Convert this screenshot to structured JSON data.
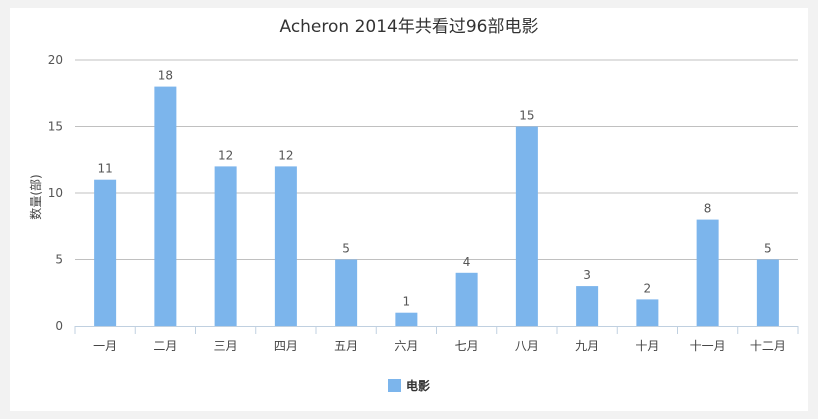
{
  "chart_data": {
    "type": "bar",
    "title": "Acheron 2014年共看过96部电影",
    "xlabel": "",
    "ylabel": "数量(部)",
    "ylim": [
      0,
      20
    ],
    "yticks": [
      0,
      5,
      10,
      15,
      20
    ],
    "categories": [
      "一月",
      "二月",
      "三月",
      "四月",
      "五月",
      "六月",
      "七月",
      "八月",
      "九月",
      "十月",
      "十一月",
      "十二月"
    ],
    "series": [
      {
        "name": "电影",
        "values": [
          11,
          18,
          12,
          12,
          5,
          1,
          4,
          15,
          3,
          2,
          8,
          5
        ]
      }
    ],
    "grid": true,
    "legend_position": "bottom-center",
    "colors": {
      "bar": "#7cb5ec",
      "grid": "#c0c0c0",
      "axis": "#c0d0e0"
    }
  }
}
